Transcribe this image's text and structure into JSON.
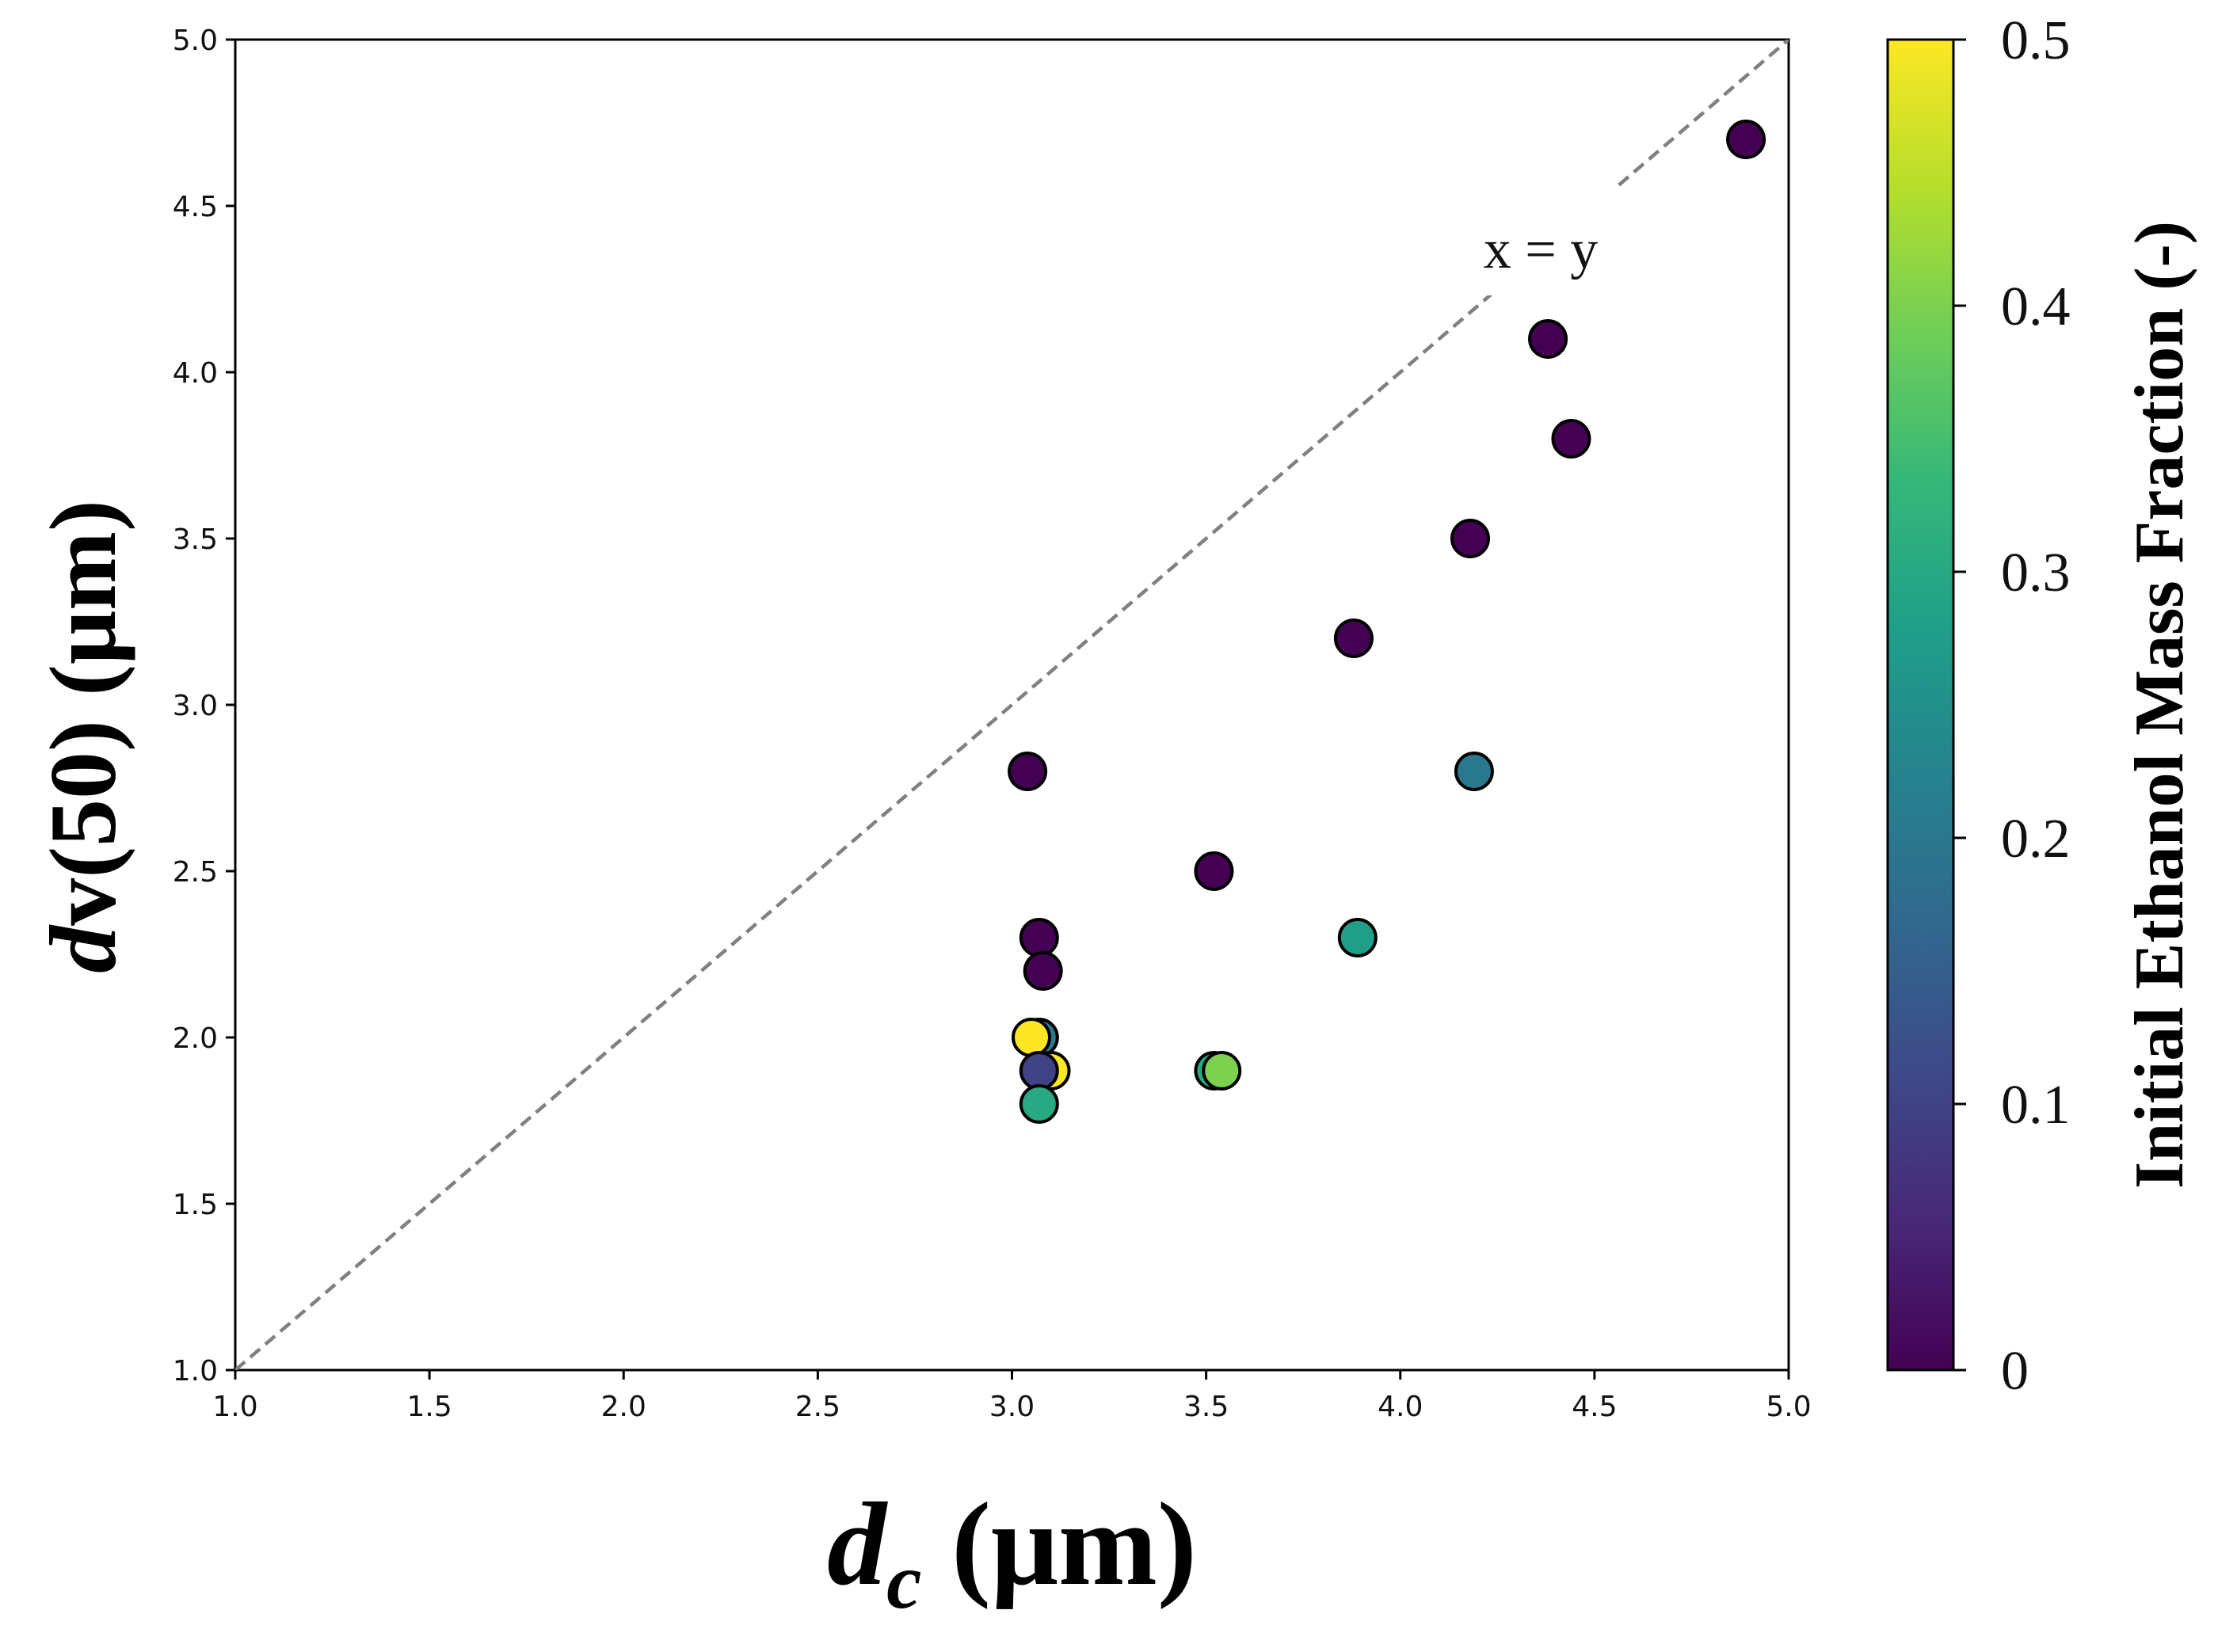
{
  "chart_data": {
    "type": "scatter",
    "title": "",
    "xlabel": {
      "main": "d",
      "sub": "c",
      "unit": " (μm)"
    },
    "ylabel": {
      "main": "d",
      "rest": "v(50) (μm)"
    },
    "xlim": [
      1.0,
      5.0
    ],
    "ylim": [
      1.0,
      5.0
    ],
    "xticks": [
      "1.0",
      "1.5",
      "2.0",
      "2.5",
      "3.0",
      "3.5",
      "4.0",
      "4.5",
      "5.0"
    ],
    "yticks": [
      "1.0",
      "1.5",
      "2.0",
      "2.5",
      "3.0",
      "3.5",
      "4.0",
      "4.5",
      "5.0"
    ],
    "grid": false,
    "reference_line": {
      "label": "x = y",
      "from": [
        1.0,
        1.0
      ],
      "to": [
        5.0,
        5.0
      ],
      "style": "dashed",
      "color": "#808080"
    },
    "colorbar": {
      "label": "Initial Ethanol Mass Fraction (-)",
      "range": [
        0,
        0.5
      ],
      "ticks": [
        {
          "value": 0,
          "label": "0"
        },
        {
          "value": 0.1,
          "label": "0.1"
        },
        {
          "value": 0.2,
          "label": "0.2"
        },
        {
          "value": 0.3,
          "label": "0.3"
        },
        {
          "value": 0.4,
          "label": "0.4"
        },
        {
          "value": 0.5,
          "label": "0.5"
        }
      ],
      "colormap": "viridis",
      "stops": [
        "#440154",
        "#482878",
        "#3e4989",
        "#31688e",
        "#26828e",
        "#1f9e89",
        "#35b779",
        "#6ece58",
        "#b5de2b",
        "#fde725"
      ]
    },
    "points": [
      {
        "x": 4.89,
        "y": 4.7,
        "c": 0.0
      },
      {
        "x": 4.38,
        "y": 4.1,
        "c": 0.0
      },
      {
        "x": 4.44,
        "y": 3.8,
        "c": 0.0
      },
      {
        "x": 4.18,
        "y": 3.5,
        "c": 0.0
      },
      {
        "x": 3.88,
        "y": 3.2,
        "c": 0.0
      },
      {
        "x": 4.19,
        "y": 2.8,
        "c": 0.2
      },
      {
        "x": 3.04,
        "y": 2.8,
        "c": 0.0
      },
      {
        "x": 3.52,
        "y": 2.5,
        "c": 0.0
      },
      {
        "x": 3.89,
        "y": 2.3,
        "c": 0.28
      },
      {
        "x": 3.07,
        "y": 2.3,
        "c": 0.0
      },
      {
        "x": 3.08,
        "y": 2.2,
        "c": 0.0
      },
      {
        "x": 3.07,
        "y": 2.0,
        "c": 0.2
      },
      {
        "x": 3.1,
        "y": 1.9,
        "c": 0.5
      },
      {
        "x": 3.52,
        "y": 1.9,
        "c": 0.3
      },
      {
        "x": 3.54,
        "y": 1.9,
        "c": 0.4
      },
      {
        "x": 3.05,
        "y": 2.0,
        "c": 0.5
      },
      {
        "x": 3.07,
        "y": 1.9,
        "c": 0.1
      },
      {
        "x": 3.07,
        "y": 1.8,
        "c": 0.3
      }
    ]
  }
}
